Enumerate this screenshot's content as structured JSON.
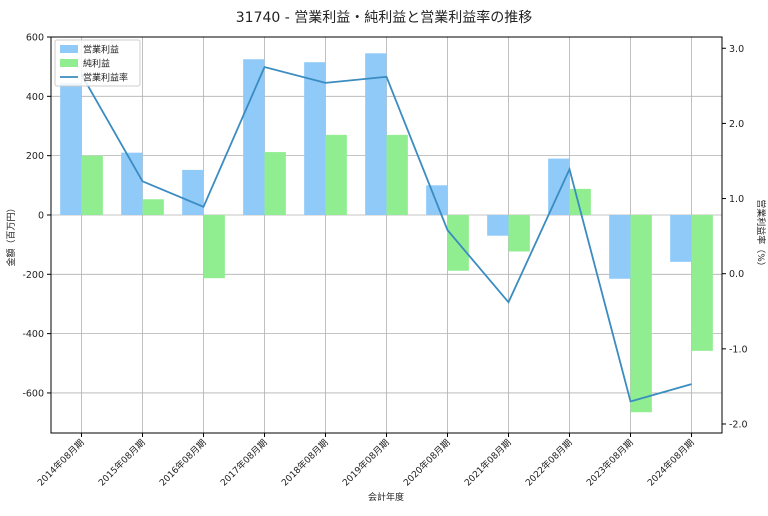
{
  "chart_data": {
    "type": "bar",
    "title": "31740 - 営業利益・純利益と営業利益率の推移",
    "xlabel": "会計年度",
    "ylabel": "金額（百万円）",
    "y2label": "営業利益率（%）",
    "categories": [
      "2014年08月期",
      "2015年08月期",
      "2016年08月期",
      "2017年08月期",
      "2018年08月期",
      "2019年08月期",
      "2020年08月期",
      "2021年08月期",
      "2022年08月期",
      "2023年08月期",
      "2024年08月期"
    ],
    "series": [
      {
        "name": "営業利益",
        "kind": "bar",
        "axis": "left",
        "color": "#90caf9",
        "values": [
          445,
          210,
          152,
          525,
          515,
          545,
          100,
          -70,
          190,
          -215,
          -158
        ]
      },
      {
        "name": "純利益",
        "kind": "bar",
        "axis": "left",
        "color": "#90ee90",
        "values": [
          200,
          53,
          -213,
          212,
          270,
          270,
          -188,
          -123,
          88,
          -665,
          -458
        ]
      },
      {
        "name": "営業利益率",
        "kind": "line",
        "axis": "right",
        "color": "#3a8cc1",
        "values": [
          2.65,
          1.23,
          0.89,
          2.75,
          2.54,
          2.62,
          0.58,
          -0.38,
          1.39,
          -1.7,
          -1.47
        ]
      }
    ],
    "ylim": [
      -735,
      600
    ],
    "yticks": [
      -600,
      -400,
      -200,
      0,
      200,
      400,
      600
    ],
    "y2lim": [
      -2.12,
      3.15
    ],
    "y2ticks": [
      -2.0,
      -1.0,
      0.0,
      1.0,
      2.0,
      3.0
    ],
    "y2tick_labels": [
      "-2.0",
      "-1.0",
      "0.0",
      "1.0",
      "2.0",
      "3.0"
    ],
    "grid": true,
    "legend": "top-left"
  }
}
